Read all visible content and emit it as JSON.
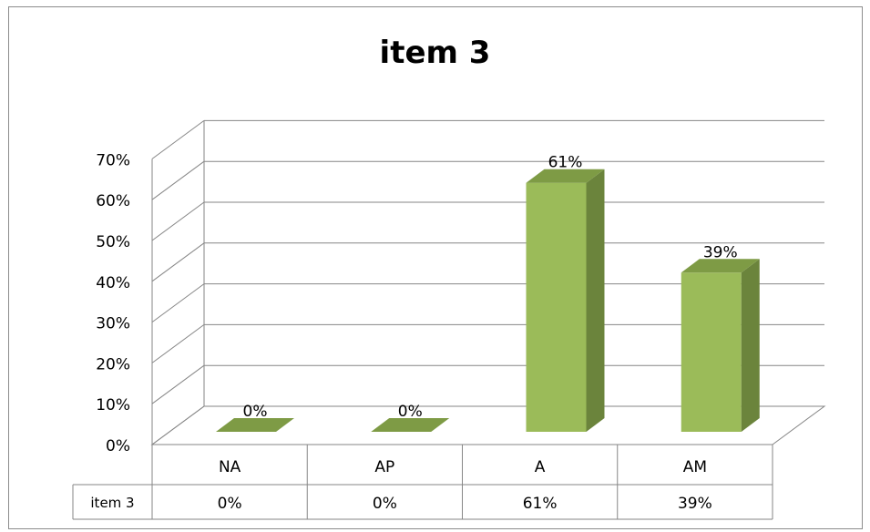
{
  "chart_data": {
    "type": "bar",
    "title": "item 3",
    "categories": [
      "NA",
      "AP",
      "A",
      "AM"
    ],
    "series": [
      {
        "name": "item 3",
        "values": [
          0,
          0,
          61,
          39
        ],
        "labels": [
          "0%",
          "0%",
          "61%",
          "39%"
        ]
      }
    ],
    "ylim": [
      0,
      70
    ],
    "yticks": [
      "0%",
      "10%",
      "20%",
      "30%",
      "40%",
      "50%",
      "60%",
      "70%"
    ],
    "xlabel": "",
    "ylabel": "",
    "grid": true,
    "legend": "data-table-below",
    "colors": {
      "front": "#9bbb59",
      "side": "#6b843c",
      "top": "#7e9b45",
      "grid": "#868686"
    }
  }
}
